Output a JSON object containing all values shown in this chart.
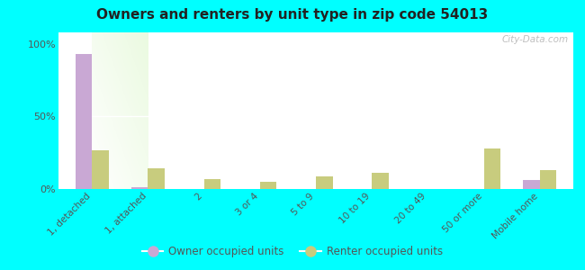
{
  "title": "Owners and renters by unit type in zip code 54013",
  "categories": [
    "1, detached",
    "1, attached",
    "2",
    "3 or 4",
    "5 to 9",
    "10 to 19",
    "20 to 49",
    "50 or more",
    "Mobile home"
  ],
  "owner_values": [
    93,
    1,
    0,
    0,
    0,
    0,
    0,
    0,
    6
  ],
  "renter_values": [
    27,
    14,
    7,
    5,
    9,
    11,
    0,
    28,
    13
  ],
  "owner_color": "#c9a8d4",
  "renter_color": "#c8cc7e",
  "background_color": "#00ffff",
  "ylabel_ticks": [
    "0%",
    "50%",
    "100%"
  ],
  "ytick_values": [
    0,
    50,
    100
  ],
  "ylim": [
    0,
    108
  ],
  "bar_width": 0.3,
  "watermark": "City-Data.com",
  "legend_owner": "Owner occupied units",
  "legend_renter": "Renter occupied units"
}
